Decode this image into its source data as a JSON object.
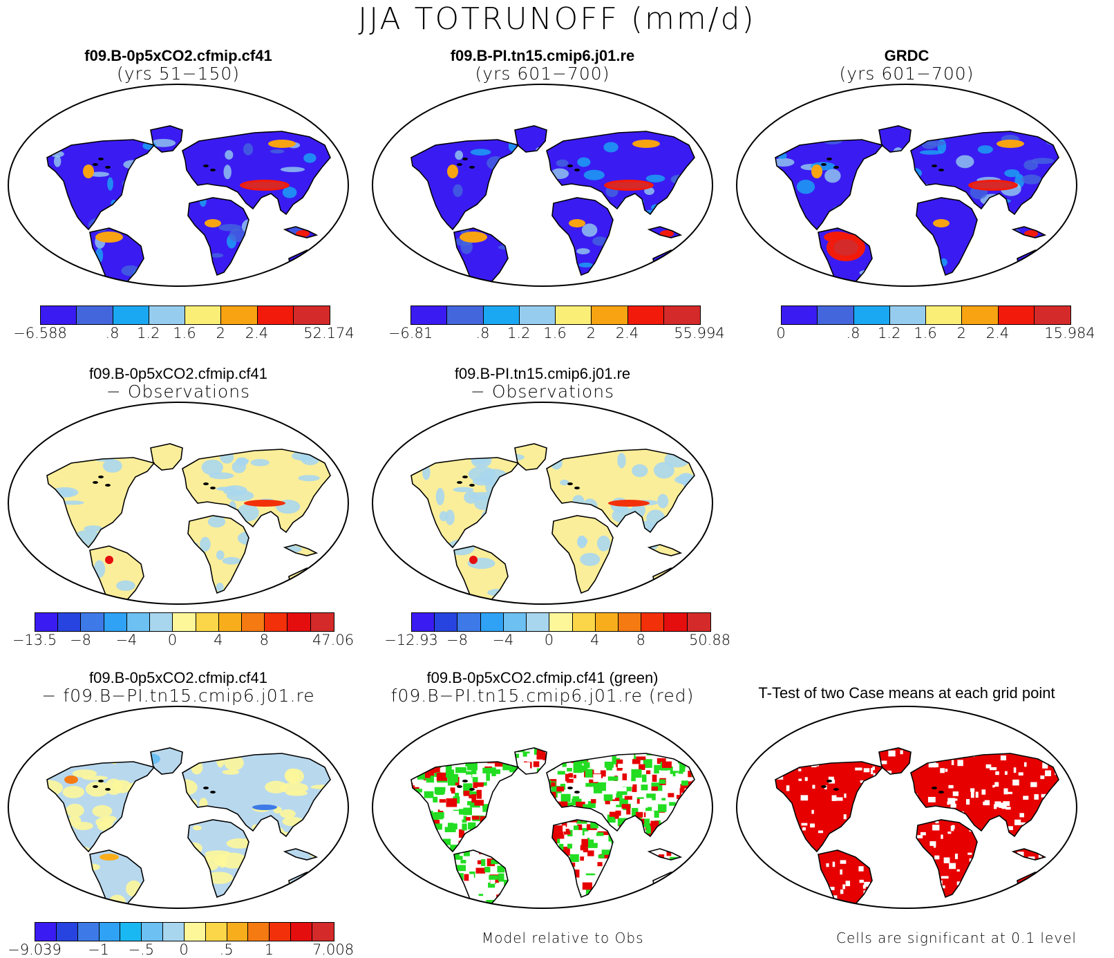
{
  "title": "JJA TOTRUNOFF (mm/d)",
  "panels": [
    {
      "id": "p1",
      "title": "f09.B-0p5xCO2.cfmip.cf41",
      "subtitle": "(yrs 51−150)",
      "bold": true,
      "style": "field",
      "antarctica": "blue"
    },
    {
      "id": "p2",
      "title": "f09.B-PI.tn15.cmip6.j01.re",
      "subtitle": "(yrs 601−700)",
      "bold": true,
      "style": "field",
      "antarctica": "blue"
    },
    {
      "id": "p3",
      "title": "GRDC",
      "subtitle": "(yrs 601−700)",
      "bold": true,
      "style": "obs",
      "antarctica": "white"
    },
    {
      "id": "p4",
      "title": "f09.B-0p5xCO2.cfmip.cf41",
      "subtitle": "− Observations",
      "bold": false,
      "style": "diff",
      "antarctica": "white"
    },
    {
      "id": "p5",
      "title": "f09.B-PI.tn15.cmip6.j01.re",
      "subtitle": "− Observations",
      "bold": false,
      "style": "diff",
      "antarctica": "white"
    },
    {
      "id": "p6",
      "title": "f09.B-0p5xCO2.cfmip.cf41",
      "subtitle": "− f09.B−PI.tn15.cmip6.j01.re",
      "bold": false,
      "style": "casediff",
      "antarctica": "lightblue"
    },
    {
      "id": "p7",
      "title": "f09.B-0p5xCO2.cfmip.cf41 (green)",
      "subtitle": "f09.B−PI.tn15.cmip6.j01.re (red)",
      "bold": false,
      "style": "greenred",
      "antarctica": "white"
    },
    {
      "id": "p8",
      "title": "T-Test of two Case means at each grid point",
      "subtitle": "",
      "bold": false,
      "style": "ttest",
      "antarctica": "speckle"
    }
  ],
  "colorbars": [
    {
      "id": "cb1",
      "colors": [
        "#3a1cf2",
        "#4466dd",
        "#1aa8f2",
        "#96cdee",
        "#fbee77",
        "#f8a312",
        "#f21a0a",
        "#d52a2a"
      ],
      "labels": [
        "−6.588",
        ".8",
        "1.2",
        "1.6",
        "2",
        "2.4",
        "52.174"
      ],
      "label_positions": [
        0,
        2,
        3,
        4,
        5,
        6,
        8
      ]
    },
    {
      "id": "cb2",
      "colors": [
        "#3a1cf2",
        "#4466dd",
        "#1aa8f2",
        "#96cdee",
        "#fbee77",
        "#f8a312",
        "#f21a0a",
        "#d52a2a"
      ],
      "labels": [
        "−6.81",
        ".8",
        "1.2",
        "1.6",
        "2",
        "2.4",
        "55.994"
      ],
      "label_positions": [
        0,
        2,
        3,
        4,
        5,
        6,
        8
      ]
    },
    {
      "id": "cb3",
      "colors": [
        "#3a1cf2",
        "#4466dd",
        "#1aa8f2",
        "#96cdee",
        "#fbee77",
        "#f8a312",
        "#f21a0a",
        "#d52a2a"
      ],
      "labels": [
        "0",
        ".8",
        "1.2",
        "1.6",
        "2",
        "2.4",
        "15.984"
      ],
      "label_positions": [
        0,
        2,
        3,
        4,
        5,
        6,
        8
      ]
    },
    {
      "id": "cb4",
      "colors": [
        "#3a1cf2",
        "#2844e0",
        "#3d7ae8",
        "#2fa2f5",
        "#6cc0f2",
        "#a8d6ee",
        "#fdf79a",
        "#fbd648",
        "#f8ae1c",
        "#f57a12",
        "#f2300a",
        "#e50e0e",
        "#d52a2a"
      ],
      "labels": [
        "−13.5",
        "−8",
        "−4",
        "0",
        "4",
        "8",
        "47.06"
      ],
      "label_positions": [
        0,
        2,
        4,
        6,
        8,
        10,
        13
      ]
    },
    {
      "id": "cb5",
      "colors": [
        "#3a1cf2",
        "#2844e0",
        "#3d7ae8",
        "#2fa2f5",
        "#6cc0f2",
        "#a8d6ee",
        "#fdf79a",
        "#fbd648",
        "#f8ae1c",
        "#f57a12",
        "#f2300a",
        "#e50e0e",
        "#d52a2a"
      ],
      "labels": [
        "−12.93",
        "−8",
        "−4",
        "0",
        "4",
        "8",
        "50.88"
      ],
      "label_positions": [
        0,
        2,
        4,
        6,
        8,
        10,
        13
      ]
    },
    {
      "id": "cb6",
      "colors": [
        "#3a1cf2",
        "#2844e0",
        "#3d7ae8",
        "#2fa2f5",
        "#1ab8f2",
        "#6cc0f2",
        "#a8d6ee",
        "#fdf79a",
        "#fbd648",
        "#f8ae1c",
        "#f57a12",
        "#f2300a",
        "#e50e0e",
        "#d52a2a"
      ],
      "labels": [
        "−9.039",
        "−1",
        "−.5",
        "0",
        ".5",
        "1",
        "7.008"
      ],
      "label_positions": [
        0,
        3,
        5,
        7,
        9,
        11,
        14
      ]
    }
  ],
  "notes": {
    "model_relative": "Model relative to Obs",
    "significant": "Cells are significant at 0.1 level"
  }
}
